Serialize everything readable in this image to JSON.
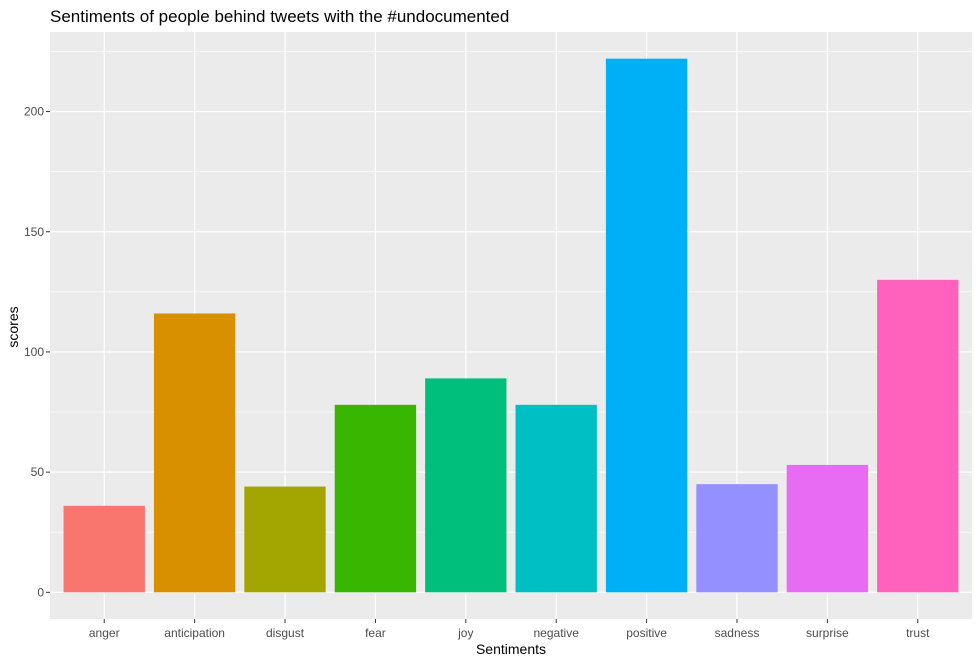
{
  "chart_data": {
    "type": "bar",
    "title": "Sentiments of people behind tweets with the #undocumented",
    "xlabel": "Sentiments",
    "ylabel": "scores",
    "categories": [
      "anger",
      "anticipation",
      "disgust",
      "fear",
      "joy",
      "negative",
      "positive",
      "sadness",
      "surprise",
      "trust"
    ],
    "values": [
      36,
      116,
      44,
      78,
      89,
      78,
      222,
      45,
      53,
      130
    ],
    "colors": [
      "#F8766D",
      "#D89000",
      "#A3A500",
      "#39B600",
      "#00BF7D",
      "#00BFC4",
      "#00B0F6",
      "#9590FF",
      "#E76BF3",
      "#FF62BC"
    ],
    "yticks": [
      0,
      50,
      100,
      150,
      200
    ],
    "ylim": [
      -11.1,
      233.1
    ],
    "grid": true,
    "legend": "none",
    "panel_background": "#EBEBEB",
    "grid_color": "#FFFFFF"
  }
}
